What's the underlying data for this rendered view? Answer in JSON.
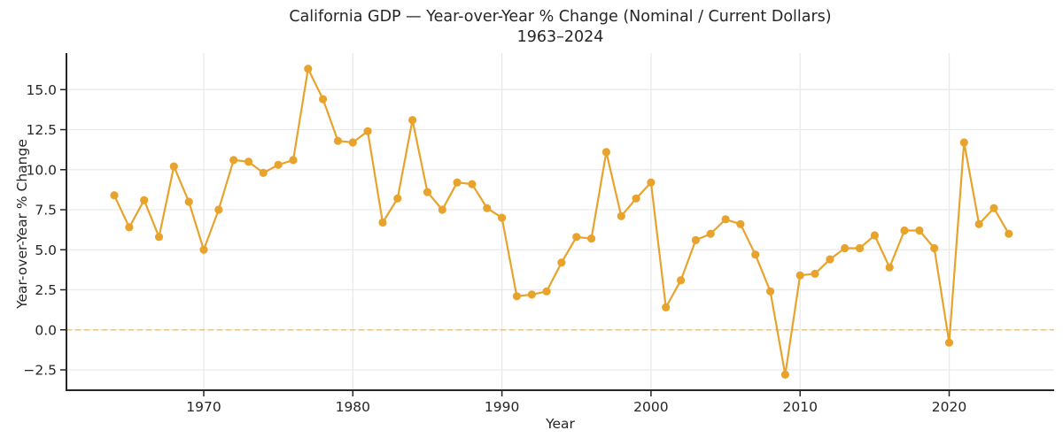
{
  "title": {
    "line1": "California GDP — Year-over-Year % Change (Nominal / Current Dollars)",
    "line2": "1963–2024"
  },
  "axes": {
    "xlabel": "Year",
    "ylabel": "Year-over-Year % Change",
    "x_ticks": [
      {
        "v": 1970,
        "label": "1970"
      },
      {
        "v": 1980,
        "label": "1980"
      },
      {
        "v": 1990,
        "label": "1990"
      },
      {
        "v": 2000,
        "label": "2000"
      },
      {
        "v": 2010,
        "label": "2010"
      },
      {
        "v": 2020,
        "label": "2020"
      }
    ],
    "y_ticks": [
      {
        "v": -2.5,
        "label": "−2.5"
      },
      {
        "v": 0.0,
        "label": "0.0"
      },
      {
        "v": 2.5,
        "label": "2.5"
      },
      {
        "v": 5.0,
        "label": "5.0"
      },
      {
        "v": 7.5,
        "label": "7.5"
      },
      {
        "v": 10.0,
        "label": "10.0"
      },
      {
        "v": 12.5,
        "label": "12.5"
      },
      {
        "v": 15.0,
        "label": "15.0"
      }
    ]
  },
  "colors": {
    "line": "#E8A32D",
    "marker": "#E8A32D",
    "zero_line": "#E8A32D",
    "grid": "#E9E9E9",
    "spine": "#262626",
    "text": "#262626"
  },
  "chart_data": {
    "type": "line",
    "title": "California GDP — Year-over-Year % Change (Nominal / Current Dollars) 1963–2024",
    "xlabel": "Year",
    "ylabel": "Year-over-Year % Change",
    "xlim": [
      1960.79,
      2027.04
    ],
    "ylim": [
      -3.77,
      17.28
    ],
    "grid": true,
    "legend": "none",
    "zero_reference_line": 0.0,
    "x": [
      1964,
      1965,
      1966,
      1967,
      1968,
      1969,
      1970,
      1971,
      1972,
      1973,
      1974,
      1975,
      1976,
      1977,
      1978,
      1979,
      1980,
      1981,
      1982,
      1983,
      1984,
      1985,
      1986,
      1987,
      1988,
      1989,
      1990,
      1991,
      1992,
      1993,
      1994,
      1995,
      1996,
      1997,
      1998,
      1999,
      2000,
      2001,
      2002,
      2003,
      2004,
      2005,
      2006,
      2007,
      2008,
      2009,
      2010,
      2011,
      2012,
      2013,
      2014,
      2015,
      2016,
      2017,
      2018,
      2019,
      2020,
      2021,
      2022,
      2023,
      2024
    ],
    "values": [
      8.4,
      6.4,
      8.1,
      5.8,
      10.2,
      8.0,
      5.0,
      7.5,
      10.6,
      10.5,
      9.8,
      10.3,
      10.6,
      16.3,
      14.4,
      11.8,
      11.7,
      12.4,
      6.7,
      8.2,
      13.1,
      8.6,
      7.5,
      9.2,
      9.1,
      7.6,
      7.0,
      2.1,
      2.2,
      2.4,
      4.2,
      5.8,
      5.7,
      11.1,
      7.1,
      8.2,
      9.2,
      1.4,
      3.1,
      5.6,
      6.0,
      6.9,
      6.6,
      4.7,
      2.4,
      -2.8,
      3.4,
      3.5,
      4.4,
      5.1,
      5.1,
      5.9,
      3.9,
      6.2,
      6.2,
      5.1,
      -0.8,
      11.7,
      6.6,
      7.6,
      6.0
    ]
  }
}
